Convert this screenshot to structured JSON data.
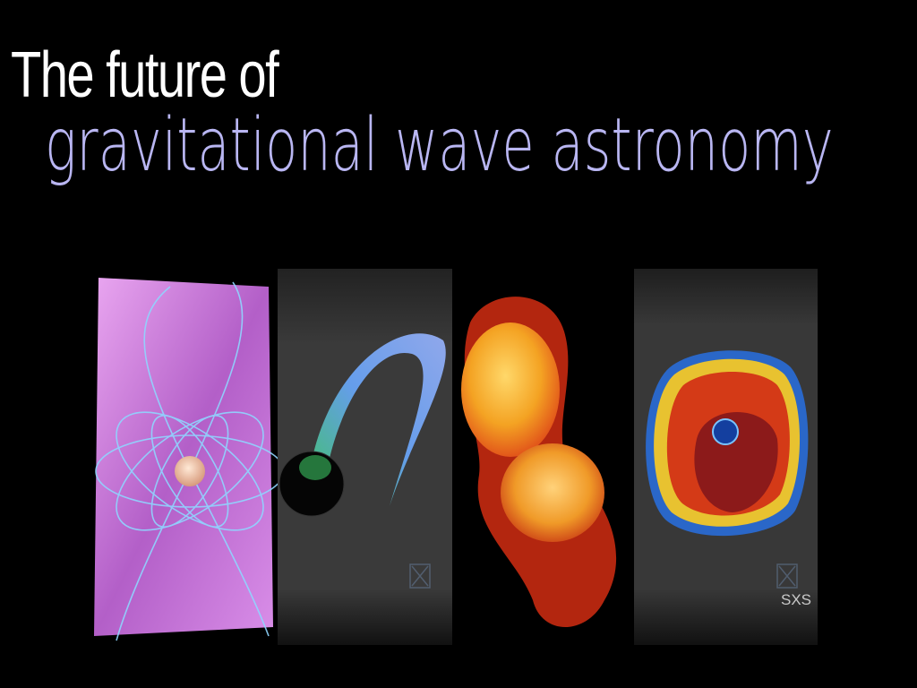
{
  "slide": {
    "title_line1": "The future of",
    "title_line2": "gravitational wave astronomy",
    "sxs_label": "SXS"
  },
  "colors": {
    "background": "#000000",
    "title_primary": "#ffffff",
    "title_secondary": "#b9b6f2"
  },
  "panels": [
    {
      "name": "magnetar-panel",
      "subject": "magnetized neutron star field lines"
    },
    {
      "name": "black-hole-disk-panel",
      "subject": "black hole with tidal disruption stream"
    },
    {
      "name": "binary-neutron-star-panel",
      "subject": "merging neutron star binary"
    },
    {
      "name": "supernova-panel",
      "subject": "core-collapse supernova turbulence"
    }
  ]
}
